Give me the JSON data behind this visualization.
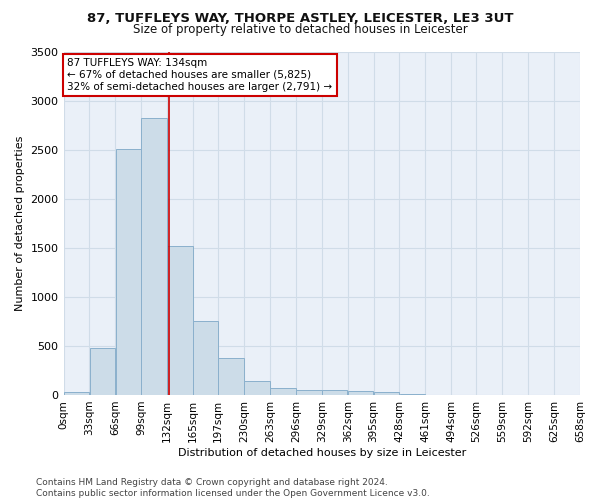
{
  "title_line1": "87, TUFFLEYS WAY, THORPE ASTLEY, LEICESTER, LE3 3UT",
  "title_line2": "Size of property relative to detached houses in Leicester",
  "xlabel": "Distribution of detached houses by size in Leicester",
  "ylabel": "Number of detached properties",
  "bar_color": "#ccdce8",
  "bar_edge_color": "#8ab0cc",
  "vline_color": "#cc0000",
  "vline_x": 134,
  "annotation_text": "87 TUFFLEYS WAY: 134sqm\n← 67% of detached houses are smaller (5,825)\n32% of semi-detached houses are larger (2,791) →",
  "annotation_box_color": "#ffffff",
  "annotation_box_edge": "#cc0000",
  "bin_edges": [
    0,
    33,
    66,
    99,
    132,
    165,
    197,
    230,
    263,
    296,
    329,
    362,
    395,
    428,
    461,
    494,
    526,
    559,
    592,
    625,
    658
  ],
  "bin_heights": [
    28,
    475,
    2510,
    2820,
    1520,
    750,
    380,
    140,
    70,
    55,
    55,
    45,
    30,
    10,
    0,
    0,
    0,
    0,
    0,
    0
  ],
  "xlim": [
    0,
    658
  ],
  "ylim": [
    0,
    3500
  ],
  "yticks": [
    0,
    500,
    1000,
    1500,
    2000,
    2500,
    3000,
    3500
  ],
  "xtick_labels": [
    "0sqm",
    "33sqm",
    "66sqm",
    "99sqm",
    "132sqm",
    "165sqm",
    "197sqm",
    "230sqm",
    "263sqm",
    "296sqm",
    "329sqm",
    "362sqm",
    "395sqm",
    "428sqm",
    "461sqm",
    "494sqm",
    "526sqm",
    "559sqm",
    "592sqm",
    "625sqm",
    "658sqm"
  ],
  "grid_color": "#d0dce8",
  "background_color": "#eaf0f8",
  "footnote": "Contains HM Land Registry data © Crown copyright and database right 2024.\nContains public sector information licensed under the Open Government Licence v3.0.",
  "title_fontsize": 9.5,
  "subtitle_fontsize": 8.5,
  "axis_label_fontsize": 8,
  "tick_fontsize": 7.5,
  "annotation_fontsize": 7.5,
  "footnote_fontsize": 6.5
}
